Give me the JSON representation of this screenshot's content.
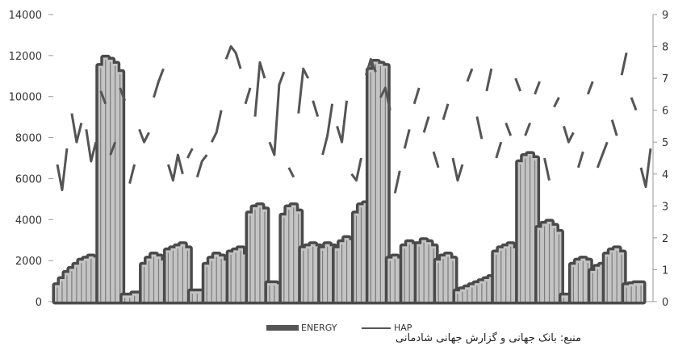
{
  "source_note": "منبع: بانک جهانی و گزارش جهانی شادمانی",
  "colors": {
    "energy_fill": "#c4c4c4",
    "energy_outline": "#4a4a4a",
    "hap_line": "#555555",
    "axis": "#999999"
  },
  "chart_data": {
    "type": "area",
    "title": "",
    "xlabel": "",
    "ylabel": "",
    "ylim_left": [
      0,
      14000
    ],
    "ylim_right": [
      0,
      9
    ],
    "yticks_left": [
      "0",
      "2000",
      "4000",
      "6000",
      "8000",
      "10000",
      "12000",
      "14000"
    ],
    "yticks_right": [
      "0",
      "1",
      "2",
      "3",
      "4",
      "5",
      "6",
      "7",
      "8",
      "9"
    ],
    "legend": {
      "position": "bottom",
      "entries": [
        "ENERGY",
        "HAP"
      ]
    },
    "series": [
      {
        "name": "ENERGY",
        "axis": "left",
        "style": "area",
        "segments": [
          {
            "start": 0,
            "values": [
              800,
              1100,
              1400,
              1600,
              1800,
              2000,
              2100,
              2200,
              2150
            ]
          },
          {
            "start": 9,
            "values": [
              11500,
              11900,
              11800,
              11600,
              11200
            ]
          },
          {
            "start": 14,
            "values": [
              300,
              300,
              400,
              400
            ]
          },
          {
            "start": 18,
            "values": [
              1800,
              2100,
              2300,
              2200,
              2000
            ]
          },
          {
            "start": 23,
            "values": [
              2500,
              2600,
              2700,
              2800,
              2600
            ]
          },
          {
            "start": 28,
            "values": [
              500,
              500,
              500
            ]
          },
          {
            "start": 31,
            "values": [
              1800,
              2100,
              2300,
              2200,
              2000
            ]
          },
          {
            "start": 36,
            "values": [
              2400,
              2500,
              2600,
              2300
            ]
          },
          {
            "start": 40,
            "values": [
              4300,
              4600,
              4700,
              4500
            ]
          },
          {
            "start": 44,
            "values": [
              900,
              900,
              850
            ]
          },
          {
            "start": 47,
            "values": [
              4200,
              4600,
              4700,
              4400
            ]
          },
          {
            "start": 51,
            "values": [
              2600,
              2700,
              2800,
              2700
            ]
          },
          {
            "start": 55,
            "values": [
              2600,
              2800,
              2700
            ]
          },
          {
            "start": 58,
            "values": [
              2600,
              2900,
              3100,
              3000
            ]
          },
          {
            "start": 62,
            "values": [
              4300,
              4700,
              4800
            ]
          },
          {
            "start": 65,
            "values": [
              11300,
              11700,
              11600,
              11500
            ]
          },
          {
            "start": 69,
            "values": [
              2100,
              2200,
              2100
            ]
          },
          {
            "start": 72,
            "values": [
              2700,
              2900,
              2800
            ]
          },
          {
            "start": 75,
            "values": [
              2800,
              3000,
              2900,
              2700
            ]
          },
          {
            "start": 79,
            "values": [
              2000,
              2200,
              2300,
              2100
            ]
          },
          {
            "start": 83,
            "values": [
              500,
              600,
              700,
              800,
              900,
              1000,
              1100,
              1200
            ]
          },
          {
            "start": 91,
            "values": [
              2400,
              2600,
              2700,
              2800,
              2600
            ]
          },
          {
            "start": 96,
            "values": [
              6800,
              7100,
              7200,
              7000
            ]
          },
          {
            "start": 100,
            "values": [
              3600,
              3800,
              3900,
              3700,
              3400
            ]
          },
          {
            "start": 105,
            "values": [
              300,
              300
            ]
          },
          {
            "start": 107,
            "values": [
              1800,
              2000,
              2100,
              2000
            ]
          },
          {
            "start": 111,
            "values": [
              1500,
              1700,
              1800
            ]
          },
          {
            "start": 114,
            "values": [
              2300,
              2500,
              2600,
              2400
            ]
          },
          {
            "start": 118,
            "values": [
              800,
              850,
              900,
              900
            ]
          }
        ]
      },
      {
        "name": "HAP",
        "axis": "right",
        "style": "line",
        "segments": [
          {
            "start": 0,
            "values": [
              4.3,
              3.5,
              4.8
            ]
          },
          {
            "start": 3,
            "values": [
              5.9,
              5.0,
              5.6
            ]
          },
          {
            "start": 6,
            "values": [
              5.4,
              4.4,
              5.0
            ]
          },
          {
            "start": 9,
            "values": [
              6.6,
              6.2
            ]
          },
          {
            "start": 11,
            "values": [
              4.6,
              5.0
            ]
          },
          {
            "start": 13,
            "values": [
              6.7,
              6.3
            ]
          },
          {
            "start": 15,
            "values": [
              3.7,
              4.3
            ]
          },
          {
            "start": 17,
            "values": [
              5.4,
              5.0,
              5.3
            ]
          },
          {
            "start": 20,
            "values": [
              6.4,
              6.9,
              7.3
            ]
          },
          {
            "start": 23,
            "values": [
              4.3,
              3.8,
              4.6,
              4.0
            ]
          },
          {
            "start": 27,
            "values": [
              4.5,
              4.8
            ]
          },
          {
            "start": 29,
            "values": [
              3.9,
              4.4,
              4.6
            ]
          },
          {
            "start": 32,
            "values": [
              5.0,
              5.3,
              6.0
            ]
          },
          {
            "start": 35,
            "values": [
              7.6,
              8.0,
              7.8,
              7.3
            ]
          },
          {
            "start": 39,
            "values": [
              6.2,
              6.7
            ]
          },
          {
            "start": 41,
            "values": [
              5.8,
              7.5,
              7.0
            ]
          },
          {
            "start": 44,
            "values": [
              5.0,
              4.6,
              6.8,
              7.2
            ]
          },
          {
            "start": 48,
            "values": [
              4.2,
              3.9
            ]
          },
          {
            "start": 50,
            "values": [
              5.9,
              7.3,
              7.0
            ]
          },
          {
            "start": 53,
            "values": [
              6.3,
              5.8
            ]
          },
          {
            "start": 55,
            "values": [
              4.6,
              5.2,
              6.2
            ]
          },
          {
            "start": 58,
            "values": [
              5.5,
              5.0,
              6.3
            ]
          },
          {
            "start": 61,
            "values": [
              4.0,
              3.8,
              4.5
            ]
          },
          {
            "start": 64,
            "values": [
              7.1,
              7.6,
              7.2
            ]
          },
          {
            "start": 67,
            "values": [
              6.4,
              6.7,
              6.0
            ]
          },
          {
            "start": 70,
            "values": [
              3.4,
              4.1
            ]
          },
          {
            "start": 72,
            "values": [
              4.8,
              5.4
            ]
          },
          {
            "start": 74,
            "values": [
              6.2,
              6.7
            ]
          },
          {
            "start": 76,
            "values": [
              5.3,
              5.8
            ]
          },
          {
            "start": 78,
            "values": [
              4.7,
              4.2
            ]
          },
          {
            "start": 80,
            "values": [
              5.7,
              6.2
            ]
          },
          {
            "start": 82,
            "values": [
              4.5,
              3.8,
              4.3
            ]
          },
          {
            "start": 85,
            "values": [
              6.9,
              7.3
            ]
          },
          {
            "start": 87,
            "values": [
              5.8,
              5.1
            ]
          },
          {
            "start": 89,
            "values": [
              6.6,
              7.3
            ]
          },
          {
            "start": 91,
            "values": [
              4.5,
              5.0
            ]
          },
          {
            "start": 93,
            "values": [
              5.6,
              5.2
            ]
          },
          {
            "start": 95,
            "values": [
              7.0,
              6.6
            ]
          },
          {
            "start": 97,
            "values": [
              5.2,
              5.6
            ]
          },
          {
            "start": 99,
            "values": [
              6.5,
              6.9
            ]
          },
          {
            "start": 101,
            "values": [
              4.5,
              3.8
            ]
          },
          {
            "start": 103,
            "values": [
              6.1,
              6.4
            ]
          },
          {
            "start": 105,
            "values": [
              5.5,
              5.0,
              5.3
            ]
          },
          {
            "start": 108,
            "values": [
              4.2,
              4.7
            ]
          },
          {
            "start": 110,
            "values": [
              6.5,
              6.9
            ]
          },
          {
            "start": 112,
            "values": [
              4.2,
              4.6,
              5.0
            ]
          },
          {
            "start": 115,
            "values": [
              5.7,
              5.2
            ]
          },
          {
            "start": 117,
            "values": [
              7.1,
              7.8
            ]
          },
          {
            "start": 119,
            "values": [
              6.4,
              6.0
            ]
          },
          {
            "start": 121,
            "values": [
              4.2,
              3.6,
              4.8
            ]
          }
        ]
      }
    ]
  }
}
